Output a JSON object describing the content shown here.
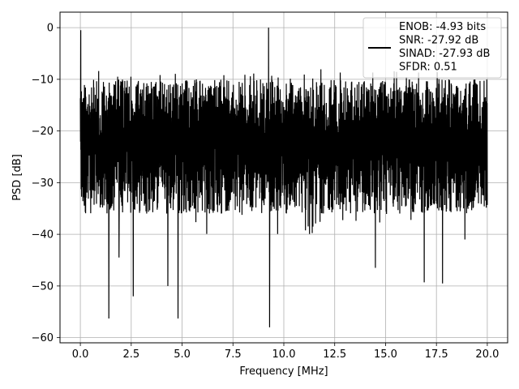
{
  "chart_data": {
    "type": "line",
    "xlabel": "Frequency [MHz]",
    "ylabel": "PSD [dB]",
    "xlim": [
      -1.0,
      21.0
    ],
    "ylim": [
      -61.0,
      3.0
    ],
    "xticks": [
      0.0,
      2.5,
      5.0,
      7.5,
      10.0,
      12.5,
      15.0,
      17.5,
      20.0
    ],
    "xtick_labels": [
      "0.0",
      "2.5",
      "5.0",
      "7.5",
      "10.0",
      "12.5",
      "15.0",
      "17.5",
      "20.0"
    ],
    "yticks": [
      0,
      -10,
      -20,
      -30,
      -40,
      -50,
      -60
    ],
    "ytick_labels": [
      "0",
      "−10",
      "−20",
      "−30",
      "−40",
      "−50",
      "−60"
    ],
    "grid": true,
    "legend_position": "top-right",
    "line_color": "#000000",
    "series": [
      {
        "noise_floor_band": [
          -36,
          -8
        ],
        "x_range": [
          0.0,
          20.0
        ],
        "peaks": [
          {
            "x": 0.02,
            "y": -0.5
          },
          {
            "x": 9.25,
            "y": 0.0
          }
        ],
        "dips": [
          {
            "x": 1.4,
            "y": -56.3
          },
          {
            "x": 1.9,
            "y": -44.5
          },
          {
            "x": 2.6,
            "y": -52.0
          },
          {
            "x": 4.3,
            "y": -50.0
          },
          {
            "x": 4.8,
            "y": -56.3
          },
          {
            "x": 9.3,
            "y": -58.0
          },
          {
            "x": 14.5,
            "y": -46.5
          },
          {
            "x": 16.9,
            "y": -49.3
          },
          {
            "x": 17.8,
            "y": -49.5
          },
          {
            "x": 18.9,
            "y": -41.0
          }
        ]
      }
    ]
  },
  "legend": {
    "lines": [
      "ENOB: -4.93 bits",
      "SNR: -27.92 dB",
      "SINAD: -27.93 dB",
      "SFDR: 0.51"
    ]
  }
}
